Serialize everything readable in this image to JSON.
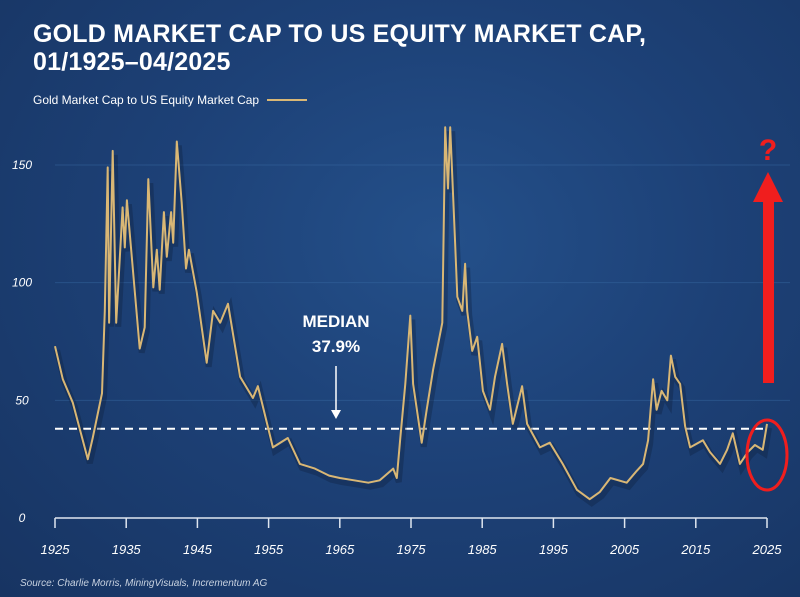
{
  "chart_data": {
    "type": "line",
    "title": "GOLD MARKET CAP TO US EQUITY MARKET CAP,",
    "subtitle": "01/1925–04/2025",
    "xlabel": "",
    "ylabel": "",
    "xlim": [
      1925,
      2025
    ],
    "ylim": [
      0,
      150
    ],
    "grid": true,
    "legend_position": "top-left",
    "x_ticks": [
      1925,
      1935,
      1945,
      1955,
      1965,
      1975,
      1985,
      1995,
      2005,
      2015,
      2025
    ],
    "y_ticks": [
      0,
      50,
      100,
      150
    ],
    "series": [
      {
        "name": "Gold Market Cap to US Equity Market Cap",
        "color": "#d9b775",
        "x": [
          1925.0,
          1926.1,
          1927.5,
          1929.6,
          1930.3,
          1931.6,
          1932.0,
          1932.4,
          1932.6,
          1933.1,
          1933.6,
          1934.5,
          1934.8,
          1935.1,
          1936.9,
          1937.6,
          1938.1,
          1938.8,
          1939.3,
          1939.7,
          1940.3,
          1940.7,
          1941.3,
          1941.6,
          1942.1,
          1942.8,
          1943.4,
          1943.8,
          1944.9,
          1946.3,
          1947.2,
          1948.2,
          1949.3,
          1951.0,
          1952.8,
          1953.5,
          1955.6,
          1957.7,
          1959.4,
          1961.5,
          1963.5,
          1965.0,
          1967.0,
          1969.0,
          1970.6,
          1972.5,
          1973.0,
          1973.5,
          1974.2,
          1974.9,
          1975.3,
          1976.5,
          1977.2,
          1978.1,
          1979.4,
          1979.8,
          1980.2,
          1980.5,
          1981.2,
          1981.5,
          1982.2,
          1982.6,
          1982.9,
          1983.6,
          1984.3,
          1985.1,
          1986.1,
          1986.8,
          1987.8,
          1988.5,
          1989.3,
          1990.6,
          1991.3,
          1993.1,
          1994.5,
          1996.3,
          1998.3,
          2000.1,
          2001.5,
          2003.0,
          2005.3,
          2006.7,
          2007.6,
          2008.3,
          2009.0,
          2009.5,
          2010.2,
          2011.0,
          2011.5,
          2012.1,
          2012.8,
          2013.5,
          2014.2,
          2016.0,
          2017.0,
          2018.4,
          2019.4,
          2020.2,
          2021.2,
          2022.3,
          2023.3,
          2024.4,
          2025.0
        ],
        "y": [
          73,
          59,
          49,
          25,
          34,
          53,
          88,
          149,
          83,
          156,
          83,
          132,
          115,
          135,
          72,
          81,
          144,
          98,
          114,
          97,
          130,
          111,
          130,
          117,
          160,
          134,
          106,
          114,
          96,
          66,
          88,
          83,
          91,
          60,
          51,
          56,
          30,
          34,
          23,
          21,
          18,
          17,
          16,
          15,
          16,
          21,
          17,
          34,
          57,
          86,
          57,
          32,
          46,
          63,
          83,
          166,
          140,
          166,
          117,
          94,
          88,
          108,
          88,
          71,
          77,
          54,
          46,
          60,
          74,
          57,
          40,
          56,
          40,
          30,
          32,
          23,
          12,
          8,
          11,
          17,
          15,
          20,
          23,
          33,
          59,
          46,
          54,
          50,
          69,
          60,
          57,
          39,
          30,
          33,
          28,
          23,
          29,
          36,
          23,
          28,
          31,
          29,
          40
        ]
      }
    ],
    "median": {
      "value": 37.9,
      "label": "MEDIAN",
      "value_label": "37.9%"
    },
    "annotations": {
      "question_mark": "?"
    }
  },
  "header": {
    "title_line1": "GOLD MARKET CAP TO US EQUITY MARKET CAP,",
    "title_line2": "01/1925–04/2025",
    "legend_label": "Gold Market Cap to US Equity Market Cap"
  },
  "footer": {
    "source": "Source: Charlie Morris, MiningVisuals, Incrementum AG"
  }
}
